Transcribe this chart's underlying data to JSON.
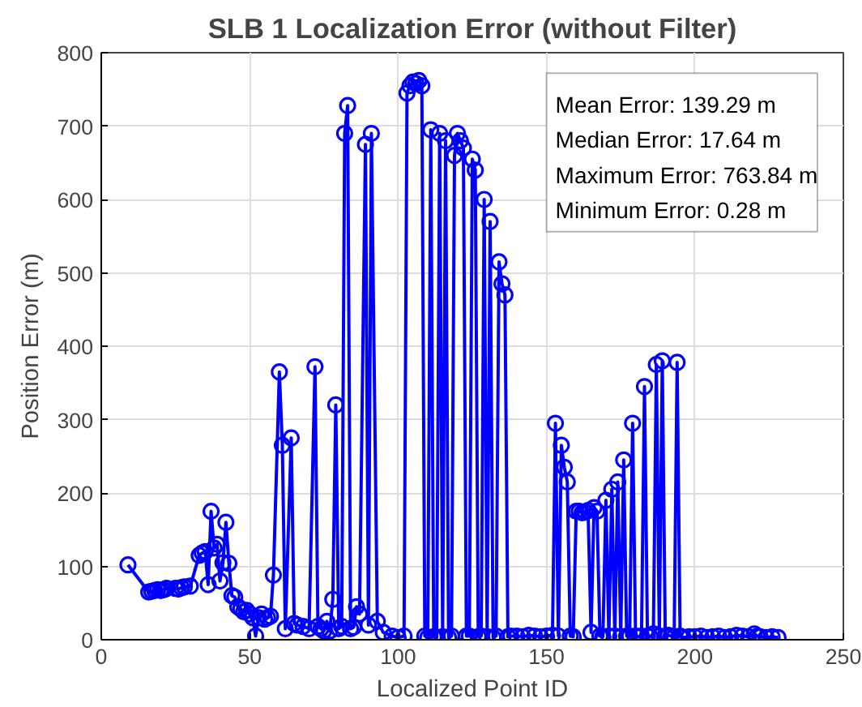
{
  "chart_data": {
    "type": "line",
    "title": "SLB 1 Localization Error (without Filter)",
    "xlabel": "Localized Point ID",
    "ylabel": "Position Error (m)",
    "annotations": [
      "Mean Error: 139.29 m",
      "Median Error: 17.64 m",
      "Maximum Error: 763.84 m",
      "Minimum Error: 0.28 m"
    ],
    "series": [
      {
        "color": "#0000ff",
        "x": [
          9,
          16,
          17,
          18,
          19,
          20,
          21,
          22,
          25,
          26,
          27,
          28,
          30,
          33,
          34,
          35,
          36,
          37,
          38,
          39,
          40,
          41,
          42,
          43,
          44,
          45,
          46,
          47,
          48,
          49,
          50,
          51,
          52,
          53,
          54,
          55,
          56,
          57,
          58,
          60,
          61,
          62,
          64,
          65,
          66,
          68,
          70,
          72,
          73,
          74,
          75,
          76,
          77,
          78,
          79,
          80,
          81,
          82,
          83,
          84,
          85,
          86,
          87,
          89,
          90,
          91,
          93,
          95,
          98,
          100,
          102,
          103,
          104,
          105,
          106,
          107,
          108,
          109,
          110,
          111,
          112,
          113,
          114,
          115,
          116,
          117,
          118,
          119,
          120,
          121,
          122,
          123,
          124,
          125,
          126,
          127,
          128,
          129,
          130,
          131,
          132,
          133,
          134,
          135,
          136,
          137,
          138,
          140,
          142,
          144,
          146,
          148,
          150,
          152,
          153,
          154,
          155,
          156,
          157,
          158,
          159,
          160,
          161,
          162,
          163,
          164,
          165,
          166,
          167,
          168,
          169,
          170,
          171,
          172,
          173,
          174,
          175,
          176,
          177,
          178,
          179,
          180,
          181,
          182,
          183,
          184,
          185,
          186,
          187,
          188,
          189,
          190,
          191,
          192,
          193,
          194,
          195,
          196,
          198,
          200,
          202,
          204,
          206,
          208,
          210,
          212,
          214,
          216,
          218,
          220,
          221,
          222,
          224,
          226,
          228
        ],
        "values": [
          102,
          65,
          66,
          67,
          68,
          67,
          68,
          70,
          70,
          69,
          71,
          72,
          73,
          115,
          118,
          120,
          75,
          175,
          125,
          130,
          80,
          105,
          160,
          104,
          60,
          58,
          45,
          42,
          38,
          40,
          35,
          30,
          5,
          30,
          35,
          28,
          30,
          32,
          88,
          365,
          265,
          15,
          275,
          22,
          20,
          18,
          15,
          372,
          18,
          15,
          12,
          25,
          12,
          55,
          320,
          15,
          18,
          690,
          728,
          15,
          17,
          45,
          35,
          675,
          20,
          690,
          25,
          10,
          5,
          3,
          5,
          745,
          755,
          760,
          758,
          762,
          755,
          5,
          3,
          695,
          4,
          3,
          690,
          4,
          680,
          3,
          5,
          660,
          690,
          680,
          670,
          5,
          5,
          655,
          640,
          4,
          5,
          600,
          4,
          570,
          3,
          5,
          515,
          485,
          470,
          4,
          5,
          5,
          4,
          6,
          5,
          4,
          5,
          6,
          295,
          5,
          265,
          235,
          215,
          5,
          4,
          175,
          175,
          173,
          174,
          176,
          10,
          180,
          175,
          5,
          4,
          190,
          5,
          205,
          5,
          215,
          4,
          245,
          5,
          5,
          295,
          5,
          4,
          5,
          345,
          5,
          4,
          8,
          375,
          5,
          380,
          5,
          6,
          5,
          4,
          378,
          5,
          3,
          4,
          4,
          5,
          3,
          4,
          5,
          3,
          4,
          6,
          5,
          4,
          8,
          5,
          4,
          3,
          4,
          3
        ]
      }
    ],
    "xlim": [
      0,
      250
    ],
    "xticks": [
      0,
      50,
      100,
      150,
      200,
      250
    ],
    "ylim": [
      0,
      800
    ],
    "yticks": [
      0,
      100,
      200,
      300,
      400,
      500,
      600,
      700,
      800
    ],
    "grid": true,
    "marker": "circle",
    "line_style": "solid"
  }
}
